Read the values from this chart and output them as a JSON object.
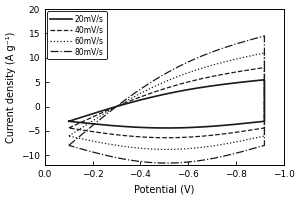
{
  "xlabel": "Potential (V)",
  "ylabel": "Current density (A g⁻¹)",
  "xlim": [
    0.0,
    -1.0
  ],
  "ylim": [
    -12,
    20
  ],
  "yticks": [
    -10,
    -5,
    0,
    5,
    10,
    15,
    20
  ],
  "xticks": [
    0.0,
    -0.2,
    -0.4,
    -0.6,
    -0.8,
    -1.0
  ],
  "line_styles": [
    "-",
    "--",
    ":",
    "-."
  ],
  "line_color": "#1a1a1a",
  "legend_labels": [
    "20mV/s",
    "40mV/s",
    "60mV/s",
    "80mV/s"
  ],
  "scales": [
    5.5,
    8.0,
    11.0,
    14.5
  ],
  "figsize": [
    3.0,
    2.0
  ],
  "dpi": 100
}
